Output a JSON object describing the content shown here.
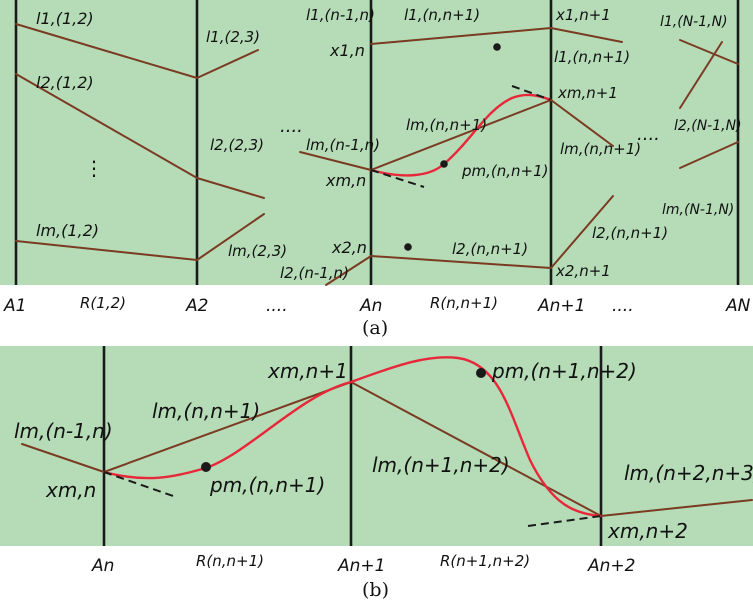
{
  "panel_a": {
    "caption": "(a)",
    "axes": [
      "A1",
      "A2",
      "....",
      "An",
      "An+1",
      "....",
      "AN"
    ],
    "regions": [
      "R(1,2)",
      "R(n,n+1)"
    ],
    "labels": {
      "l1_12": "l1,(1,2)",
      "l1_23": "l1,(2,3)",
      "l2_12": "l2,(1,2)",
      "l2_23": "l2,(2,3)",
      "vdots": "⋮",
      "lm_12": "lm,(1,2)",
      "lm_23": "lm,(2,3)",
      "l2_n1n": "l2,(n-1,n)",
      "l1_n1n": "l1,(n-1,n)",
      "x1n": "x1,n",
      "dots_mid": "....",
      "lm_n1n": "lm,(n-1,n)",
      "xmn": "xm,n",
      "x2n": "x2,n",
      "l1_nn1": "l1,(n,n+1)",
      "lm_nn1": "lm,(n,n+1)",
      "pm_nn1": "pm,(n,n+1)",
      "l2_nn1": "l2,(n,n+1)",
      "x1n1": "x1,n+1",
      "l1_nn1_r": "l1,(n,n+1)",
      "xmn1": "xm,n+1",
      "lm_nn1_r": "lm,(n,n+1)",
      "l2_nn1_r": "l2,(n,n+1)",
      "x2n1": "x2,n+1",
      "dots_right": "....",
      "l1_N1N": "l1,(N-1,N)",
      "l2_N1N": "l2,(N-1,N)",
      "lm_N1N": "lm,(N-1,N)"
    }
  },
  "panel_b": {
    "caption": "(b)",
    "axes": [
      "An",
      "An+1",
      "An+2"
    ],
    "regions": [
      "R(n,n+1)",
      "R(n+1,n+2)"
    ],
    "labels": {
      "lm_n1n": "lm,(n-1,n)",
      "xmn": "xm,n",
      "lm_nn1": "lm,(n,n+1)",
      "pm_nn1": "pm,(n,n+1)",
      "xmn1": "xm,n+1",
      "pm_n1n2": "pm,(n+1,n+2)",
      "lm_n1n2": "lm,(n+1,n+2)",
      "xmn2": "xm,n+2",
      "lm_n2n3": "lm,(n+2,n+3)"
    }
  },
  "colors": {
    "background": "#b5dcb7",
    "segment": "#7a3b22",
    "curve": "#e8283a",
    "axis": "#1a1a1a"
  }
}
